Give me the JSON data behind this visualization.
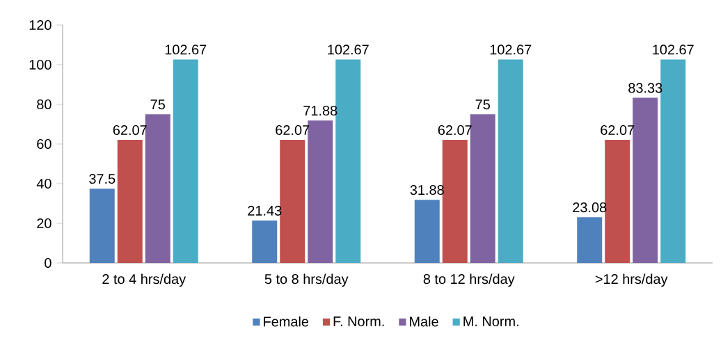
{
  "chart_data": {
    "type": "bar",
    "categories": [
      "2 to 4 hrs/day",
      "5 to 8 hrs/day",
      "8 to 12 hrs/day",
      ">12 hrs/day"
    ],
    "series": [
      {
        "name": "Female",
        "color": "#4f81bd",
        "values": [
          37.5,
          21.43,
          31.88,
          23.08
        ]
      },
      {
        "name": "F. Norm.",
        "color": "#c0504d",
        "values": [
          62.07,
          62.07,
          62.07,
          62.07
        ]
      },
      {
        "name": "Male",
        "color": "#8064a2",
        "values": [
          75,
          71.88,
          75,
          83.33
        ]
      },
      {
        "name": "M. Norm.",
        "color": "#4bacc6",
        "values": [
          102.67,
          102.67,
          102.67,
          102.67
        ]
      }
    ],
    "ylim": [
      0,
      120
    ],
    "yticks": [
      0,
      20,
      40,
      60,
      80,
      100,
      120
    ],
    "data_labels": true,
    "grid": false,
    "legend": "bottom"
  }
}
